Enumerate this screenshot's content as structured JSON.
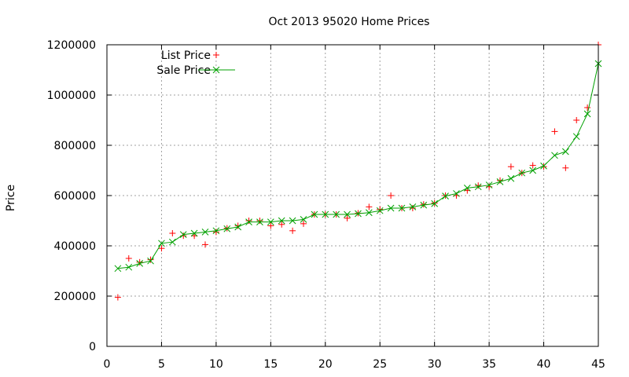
{
  "chart_data": {
    "type": "line",
    "title": "Oct 2013 95020 Home Prices",
    "xlabel": "",
    "ylabel": "Price",
    "xlim": [
      0,
      45
    ],
    "ylim": [
      0,
      1200000
    ],
    "xticks": [
      0,
      5,
      10,
      15,
      20,
      25,
      30,
      35,
      40,
      45
    ],
    "yticks": [
      0,
      200000,
      400000,
      600000,
      800000,
      1000000,
      1200000
    ],
    "x_tick_labels": [
      "0",
      "5",
      "10",
      "15",
      "20",
      "25",
      "30",
      "35",
      "40",
      "45"
    ],
    "y_tick_labels": [
      "0",
      "200000",
      "400000",
      "600000",
      "800000",
      "1000000",
      "1200000"
    ],
    "grid": true,
    "legend_position": "top-left",
    "series": [
      {
        "name": "List Price",
        "style": "points",
        "marker": "plus",
        "color": "#ff0000",
        "x": [
          1,
          2,
          3,
          4,
          5,
          6,
          7,
          8,
          9,
          10,
          11,
          12,
          13,
          14,
          15,
          16,
          17,
          18,
          19,
          20,
          21,
          22,
          23,
          24,
          25,
          26,
          27,
          28,
          29,
          30,
          31,
          32,
          33,
          34,
          35,
          36,
          37,
          38,
          39,
          40,
          41,
          42,
          43,
          44,
          45
        ],
        "y": [
          195000,
          350000,
          335000,
          345000,
          390000,
          450000,
          440000,
          440000,
          405000,
          455000,
          470000,
          480000,
          500000,
          500000,
          480000,
          485000,
          460000,
          488000,
          525000,
          525000,
          525000,
          510000,
          530000,
          555000,
          545000,
          600000,
          550000,
          550000,
          565000,
          570000,
          600000,
          600000,
          620000,
          640000,
          635000,
          660000,
          715000,
          690000,
          720000,
          715000,
          855000,
          710000,
          900000,
          950000,
          1200000
        ]
      },
      {
        "name": "Sale Price",
        "style": "linespoints",
        "marker": "x",
        "color": "#00a000",
        "x": [
          1,
          2,
          3,
          4,
          5,
          6,
          7,
          8,
          9,
          10,
          11,
          12,
          13,
          14,
          15,
          16,
          17,
          18,
          19,
          20,
          21,
          22,
          23,
          24,
          25,
          26,
          27,
          28,
          29,
          30,
          31,
          32,
          33,
          34,
          35,
          36,
          37,
          38,
          39,
          40,
          41,
          42,
          43,
          44,
          45
        ],
        "y": [
          310000,
          315000,
          330000,
          340000,
          410000,
          415000,
          445000,
          450000,
          455000,
          460000,
          468000,
          475000,
          495000,
          495000,
          495000,
          500000,
          500000,
          505000,
          525000,
          525000,
          525000,
          525000,
          528000,
          532000,
          540000,
          550000,
          550000,
          555000,
          562000,
          568000,
          598000,
          608000,
          630000,
          635000,
          642000,
          655000,
          668000,
          690000,
          700000,
          718000,
          760000,
          775000,
          835000,
          925000,
          1125000
        ]
      }
    ]
  }
}
